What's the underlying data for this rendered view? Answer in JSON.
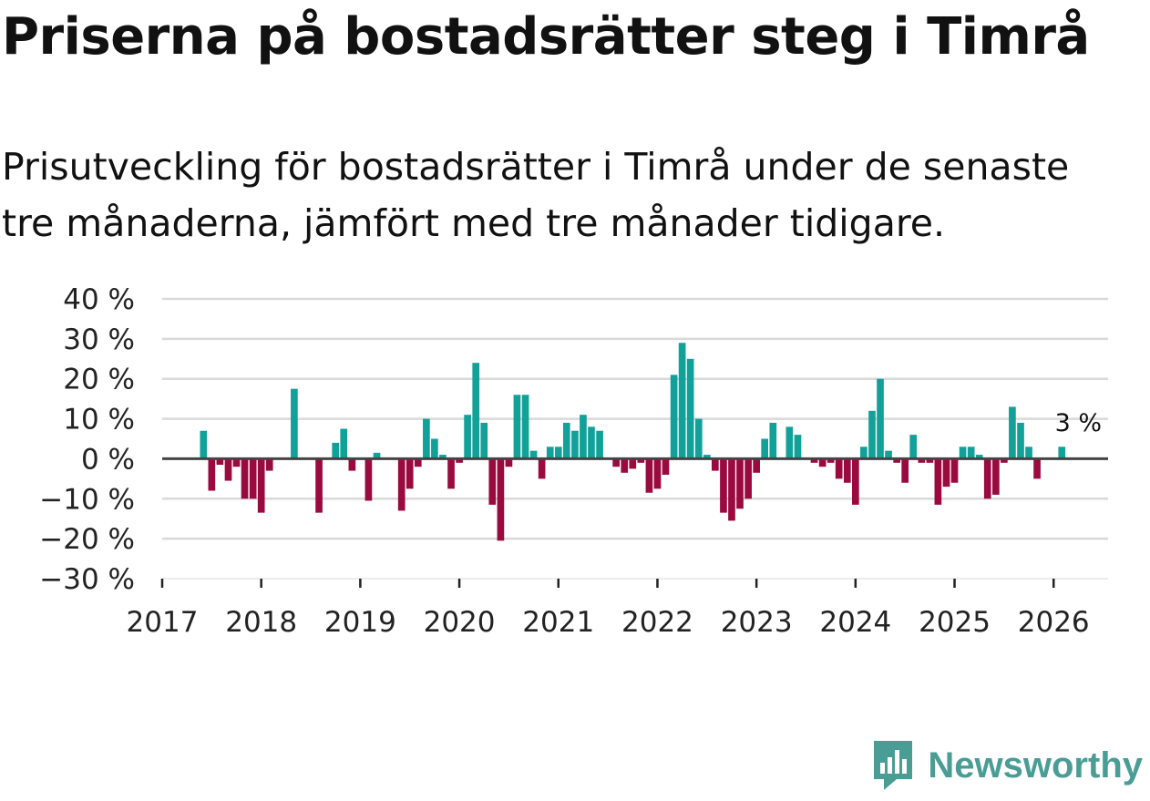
{
  "title": "Priserna på bostadsrätter steg i Timrå",
  "subtitle": "Prisutveckling för bostadsrätter i Timrå under de senaste tre månaderna, jämfört med tre månader tidigare.",
  "brand": {
    "name": "Newsworthy",
    "icon": "newsworthy-logo-icon",
    "color": "#4a9d95"
  },
  "colors": {
    "positive": "#12a199",
    "negative": "#9b0a3e",
    "grid": "#d9d9d9",
    "zero": "#444444"
  },
  "chart_data": {
    "type": "bar",
    "title": "",
    "xlabel": "",
    "ylabel": "",
    "ylim": [
      -30,
      40
    ],
    "yticks": [
      40,
      30,
      20,
      10,
      0,
      -10,
      -20,
      -30
    ],
    "ytick_labels": [
      "40 %",
      "30 %",
      "20 %",
      "10 %",
      "0 %",
      "−10 %",
      "−20 %",
      "−30 %"
    ],
    "xlim": [
      2017,
      2026.55
    ],
    "xticks": [
      "2017",
      "2018",
      "2019",
      "2020",
      "2021",
      "2022",
      "2023",
      "2024",
      "2025",
      "2026"
    ],
    "annotation": {
      "text": "3 %",
      "x": 2026.25,
      "y": 9
    },
    "series": [
      {
        "name": "Prisutveckling",
        "x": [
          2017.417,
          2017.5,
          2017.583,
          2017.667,
          2017.75,
          2017.833,
          2017.917,
          2018.0,
          2018.083,
          2018.333,
          2018.583,
          2018.75,
          2018.833,
          2018.917,
          2019.083,
          2019.167,
          2019.417,
          2019.5,
          2019.583,
          2019.667,
          2019.75,
          2019.833,
          2019.917,
          2020.0,
          2020.083,
          2020.167,
          2020.25,
          2020.333,
          2020.417,
          2020.5,
          2020.583,
          2020.667,
          2020.75,
          2020.833,
          2020.917,
          2021.0,
          2021.083,
          2021.167,
          2021.25,
          2021.333,
          2021.417,
          2021.583,
          2021.667,
          2021.75,
          2021.833,
          2021.917,
          2022.0,
          2022.083,
          2022.167,
          2022.25,
          2022.333,
          2022.417,
          2022.5,
          2022.583,
          2022.667,
          2022.75,
          2022.833,
          2022.917,
          2023.0,
          2023.083,
          2023.167,
          2023.333,
          2023.417,
          2023.583,
          2023.667,
          2023.75,
          2023.833,
          2023.917,
          2024.0,
          2024.083,
          2024.167,
          2024.25,
          2024.333,
          2024.417,
          2024.5,
          2024.583,
          2024.667,
          2024.75,
          2024.833,
          2024.917,
          2025.0,
          2025.083,
          2025.167,
          2025.25,
          2025.333,
          2025.417,
          2025.5,
          2025.583,
          2025.667,
          2025.75,
          2025.833,
          2026.083
        ],
        "values": [
          7,
          -8,
          -1.5,
          -5.5,
          -2,
          -10,
          -10,
          -13.5,
          -3,
          17.5,
          -13.5,
          4,
          7.5,
          -3,
          -10.5,
          1.5,
          -13,
          -7.5,
          -2,
          10,
          5,
          1,
          -7.5,
          -1,
          11,
          24,
          9,
          -11.5,
          -20.5,
          -2,
          16,
          16,
          2,
          -5,
          3,
          3,
          9,
          7,
          11,
          8,
          7,
          -2,
          -3.5,
          -2.5,
          -1,
          -8.5,
          -7.5,
          -4,
          21,
          29,
          25,
          10,
          1,
          -3,
          -13.5,
          -15.5,
          -12.5,
          -10,
          -3.5,
          5,
          9,
          8,
          6,
          -1,
          -2,
          -1,
          -5,
          -6,
          -11.5,
          3,
          12,
          20,
          2,
          -1,
          -6,
          6,
          -1,
          -1,
          -11.5,
          -7,
          -6,
          3,
          3,
          1,
          -10,
          -9,
          -1,
          13,
          9,
          3,
          -5,
          3
        ]
      }
    ]
  }
}
